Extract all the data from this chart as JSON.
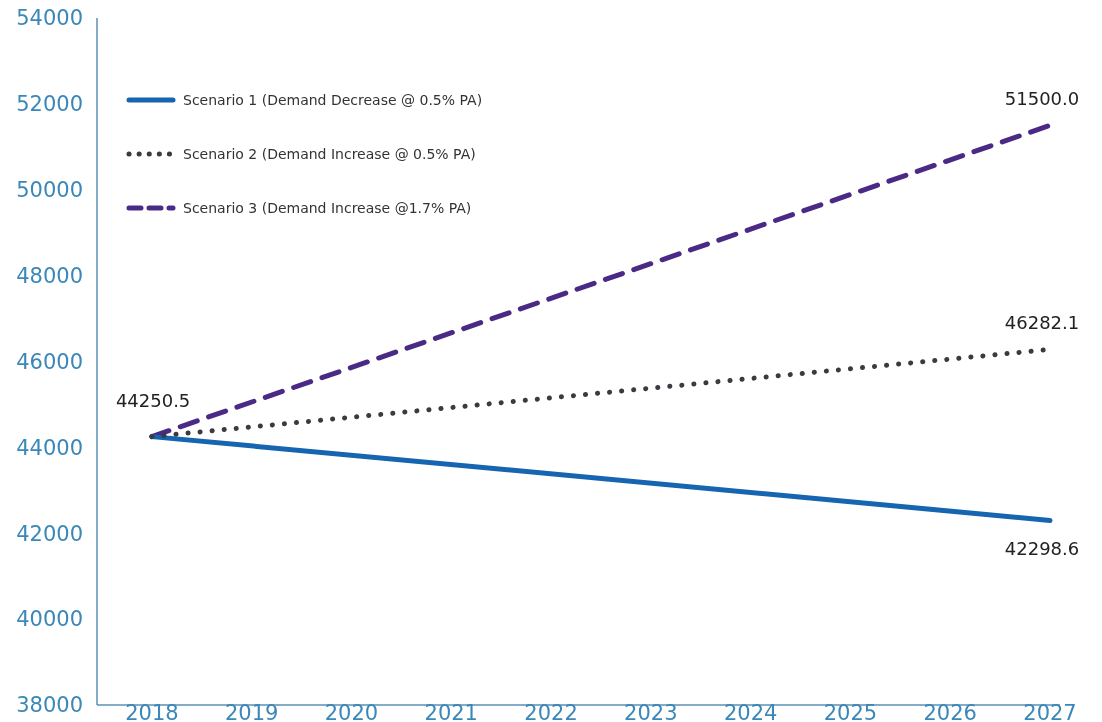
{
  "chart_data": {
    "type": "line",
    "x": [
      2018,
      2027
    ],
    "xlim": [
      2017.45,
      2027.1
    ],
    "xticks": [
      2018,
      2019,
      2020,
      2021,
      2022,
      2023,
      2024,
      2025,
      2026,
      2027
    ],
    "ylim": [
      38000,
      54000
    ],
    "yticks": [
      38000,
      40000,
      42000,
      44000,
      46000,
      48000,
      50000,
      52000,
      54000
    ],
    "grid": false,
    "legend": "top left",
    "marker": "none",
    "series": [
      {
        "name": "Scenario 1 (Demand Decrease @ 0.5% PA)",
        "color": "#1565b0",
        "line_style": "solid",
        "values": [
          44250.5,
          42298.6
        ],
        "value_labels": [
          "44250.5",
          "42298.6"
        ]
      },
      {
        "name": "Scenario 2 (Demand Increase @ 0.5% PA)",
        "color": "#3a3a40",
        "line_style": "dotted",
        "values": [
          44250.5,
          46282.1
        ],
        "value_labels": [
          null,
          "46282.1"
        ]
      },
      {
        "name": "Scenario 3  (Demand Increase @1.7% PA)",
        "color": "#4b2a85",
        "line_style": "dashed",
        "values": [
          44250.5,
          51500.0
        ],
        "value_labels": [
          null,
          "51500.0"
        ]
      }
    ]
  }
}
